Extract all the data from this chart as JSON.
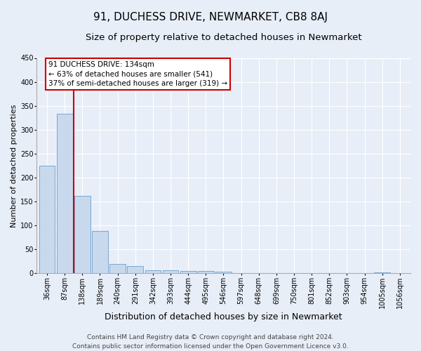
{
  "title": "91, DUCHESS DRIVE, NEWMARKET, CB8 8AJ",
  "subtitle": "Size of property relative to detached houses in Newmarket",
  "xlabel": "Distribution of detached houses by size in Newmarket",
  "ylabel": "Number of detached properties",
  "categories": [
    "36sqm",
    "87sqm",
    "138sqm",
    "189sqm",
    "240sqm",
    "291sqm",
    "342sqm",
    "393sqm",
    "444sqm",
    "495sqm",
    "546sqm",
    "597sqm",
    "648sqm",
    "699sqm",
    "750sqm",
    "801sqm",
    "852sqm",
    "903sqm",
    "954sqm",
    "1005sqm",
    "1056sqm"
  ],
  "values": [
    225,
    333,
    162,
    88,
    20,
    15,
    7,
    7,
    5,
    5,
    3,
    0,
    1,
    0,
    0,
    0,
    0,
    0,
    0,
    2,
    0
  ],
  "bar_color": "#c8d9ee",
  "bar_edge_color": "#6a9ec9",
  "highlight_color": "#cc0000",
  "annotation_text": "91 DUCHESS DRIVE: 134sqm\n← 63% of detached houses are smaller (541)\n37% of semi-detached houses are larger (319) →",
  "annotation_box_color": "#ffffff",
  "annotation_box_edge": "#cc0000",
  "ylim": [
    0,
    450
  ],
  "yticks": [
    0,
    50,
    100,
    150,
    200,
    250,
    300,
    350,
    400,
    450
  ],
  "footer_line1": "Contains HM Land Registry data © Crown copyright and database right 2024.",
  "footer_line2": "Contains public sector information licensed under the Open Government Licence v3.0.",
  "bg_color": "#e8eef8",
  "plot_bg_color": "#e8eef8",
  "grid_color": "#ffffff",
  "title_fontsize": 11,
  "subtitle_fontsize": 9.5,
  "xlabel_fontsize": 9,
  "ylabel_fontsize": 8,
  "tick_fontsize": 7,
  "footer_fontsize": 6.5,
  "annotation_fontsize": 7.5
}
